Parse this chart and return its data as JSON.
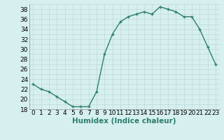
{
  "x": [
    0,
    1,
    2,
    3,
    4,
    5,
    6,
    7,
    8,
    9,
    10,
    11,
    12,
    13,
    14,
    15,
    16,
    17,
    18,
    19,
    20,
    21,
    22,
    23
  ],
  "y": [
    23,
    22,
    21.5,
    20.5,
    19.5,
    18.5,
    18.5,
    18.5,
    21.5,
    29,
    33,
    35.5,
    36.5,
    37,
    37.5,
    37,
    38.5,
    38,
    37.5,
    36.5,
    36.5,
    34,
    30.5,
    27
  ],
  "line_color": "#2d7d6e",
  "marker": "+",
  "bg_color": "#d6f0ef",
  "grid_color": "#c0d8d8",
  "xlabel": "Humidex (Indice chaleur)",
  "ylim": [
    18,
    39
  ],
  "xlim": [
    -0.5,
    23.5
  ],
  "yticks": [
    18,
    20,
    22,
    24,
    26,
    28,
    30,
    32,
    34,
    36,
    38
  ],
  "xticks": [
    0,
    1,
    2,
    3,
    4,
    5,
    6,
    7,
    8,
    9,
    10,
    11,
    12,
    13,
    14,
    15,
    16,
    17,
    18,
    19,
    20,
    21,
    22,
    23
  ],
  "tick_label_fontsize": 6.5,
  "xlabel_fontsize": 7.5,
  "line_width": 1.0,
  "marker_size": 3.5,
  "marker_edge_width": 1.0
}
